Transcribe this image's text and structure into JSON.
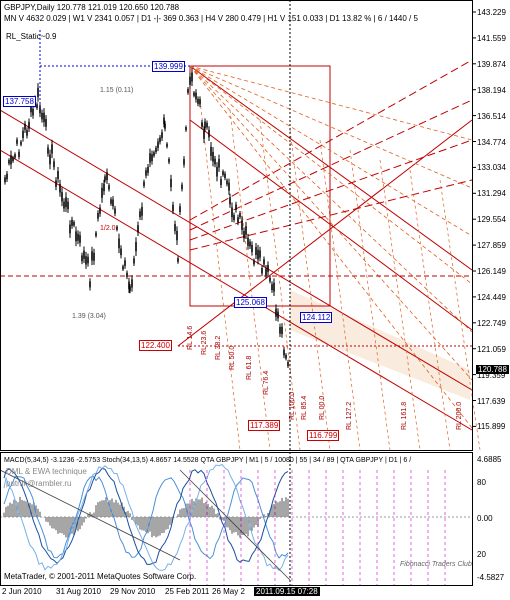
{
  "header": {
    "line1": "GBPJPY,Daily  120.778 121.019 120.650 120.788",
    "line2": "MN V 4632  0.029 | W1 V 2341  0.057 | D1 -|- 369  0.363 | H4 V 280  0.479 | H1 V 151  0.033 | D1  13.82 % | 6 / 1440 / 5",
    "indicator": "RL_Static~0.9"
  },
  "price_axis": [
    "143.229",
    "141.559",
    "139.874",
    "138.194",
    "136.514",
    "134.774",
    "133.034",
    "131.294",
    "129.554",
    "127.859",
    "126.149",
    "124.449",
    "122.749",
    "121.059",
    "119.359",
    "117.639",
    "115.899"
  ],
  "current_price": "120.788",
  "price_boxes": {
    "high": "139.999",
    "left_high": "137.758",
    "low_left": "122.400",
    "mid": "125.068",
    "right": "124.112",
    "bottom1": "117.389",
    "bottom2": "116.799"
  },
  "ratio_labels": {
    "top": "1.15 (0.11)",
    "bottom": "1.39 (3.04)",
    "mid": "1/2.0"
  },
  "rl_labels": [
    "RL 14.6",
    "RL 23.6",
    "RL 38.2",
    "RL 50.0",
    "RL 61.8",
    "RL 76.4",
    "RL 100.0",
    "RL 127.2",
    "RL 161.8",
    "RL 200.0",
    "RL 85.4",
    "RL 00.0"
  ],
  "macd_header": "MACD(5,34,5) -3.1236 -2.5753  Stoch(34,13,5) 4.8657 14.5528  QTA  GBPJPY | M1 | 5 / 10080 | 55 | 34 / 89 | QTA  GBPJPY | D1 | 6 /",
  "dml_label": "DML & EWA  technique",
  "email_label": "putnik@rambler.ru",
  "copyright": "MetaTrader, © 2001-2011 MetaQuotes Software Corp.",
  "club_label": "Fibonacci Traders Club",
  "sub_axis": [
    "4.6885",
    "80",
    "0.00",
    "20",
    "-4.5827"
  ],
  "date_axis": [
    "2 Jun 2010",
    "31 Aug 2010",
    "29 Nov 2010",
    "25 Feb 2011",
    "26 May 2"
  ],
  "date_cursor": "2011.09.15 07:28",
  "colors": {
    "candles": "#000000",
    "fib_red": "#c00000",
    "fib_orange": "#e06020",
    "fill_peach": "#f7e2d0",
    "current_bg": "#000000",
    "box_blue": "#0000cc",
    "box_red": "#cc0000",
    "sub_magenta": "#cc00cc"
  }
}
